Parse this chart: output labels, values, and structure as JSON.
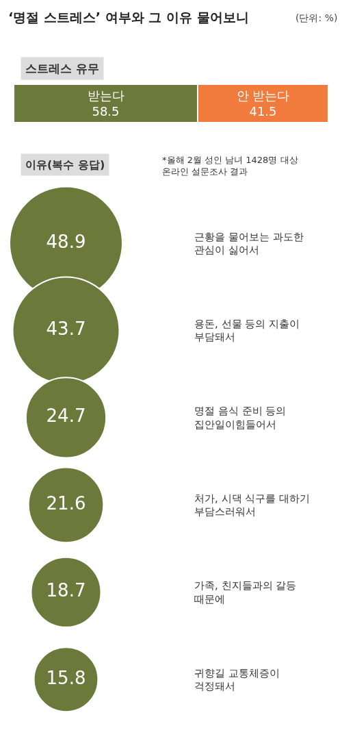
{
  "chart_data": [
    {
      "type": "bar",
      "orientation": "horizontal",
      "stacked": true,
      "title": "‘명절 스트레스’ 여부와 그 이유 물어보니",
      "subtitle": "(단위: %)",
      "annotations": [
        "스트레스 유무"
      ],
      "categories": [
        null
      ],
      "series": [
        {
          "name": "받는다",
          "color": "#6b7a3a",
          "values": [
            58.5
          ]
        },
        {
          "name": "안 받는다",
          "color": "#f07b3c",
          "values": [
            41.5
          ]
        }
      ],
      "data_labels": true
    },
    {
      "type": "other",
      "annotations": [
        "이유(복수 응답)",
        "*올해 2월 성인 남녀 1428명 대상\n온라인 설문조사 결과"
      ],
      "categories": [
        "근황을 물어보는 과도한\n관심이 싫어서",
        "용돈, 선물 등의 지출이\n부담돼서",
        "명절 음식 준비 등의\n집안일이힘들어서",
        "처가, 시댁 식구를 대하기\n부담스러워서",
        "가족, 친지들과의 갈등\n때문에",
        "귀향길 교통체증이\n걱정돼서"
      ],
      "values": [
        48.9,
        43.7,
        24.7,
        21.6,
        18.7,
        15.8
      ],
      "color": "#6b7a3a",
      "data_labels": true
    }
  ]
}
